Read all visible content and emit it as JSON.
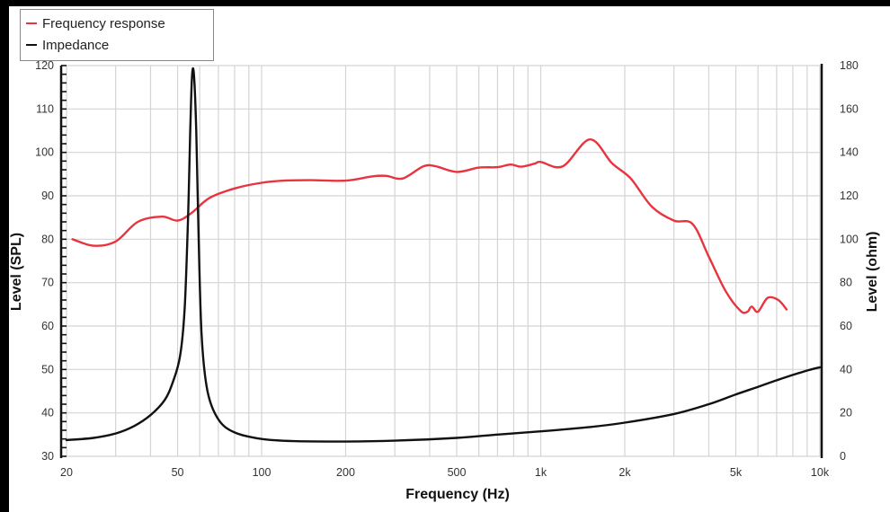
{
  "chart_data": {
    "type": "line",
    "title": "",
    "xlabel": "Frequency (Hz)",
    "ylabel": "Level (SPL)",
    "y2label": "Level (ohm)",
    "xscale": "log",
    "xlim": [
      20,
      10000
    ],
    "ylim": [
      30,
      120
    ],
    "y2lim": [
      0,
      180
    ],
    "x_ticks": [
      {
        "value": 20,
        "label": "20"
      },
      {
        "value": 50,
        "label": "50"
      },
      {
        "value": 100,
        "label": "100"
      },
      {
        "value": 200,
        "label": "200"
      },
      {
        "value": 500,
        "label": "500"
      },
      {
        "value": 1000,
        "label": "1k"
      },
      {
        "value": 2000,
        "label": "2k"
      },
      {
        "value": 5000,
        "label": "5k"
      },
      {
        "value": 10000,
        "label": "10k"
      }
    ],
    "y_ticks": [
      "30",
      "40",
      "50",
      "60",
      "70",
      "80",
      "90",
      "100",
      "110",
      "120"
    ],
    "y2_ticks": [
      "0",
      "20",
      "40",
      "60",
      "80",
      "100",
      "120",
      "140",
      "160",
      "180"
    ],
    "grid": true,
    "legend_position": "top-left",
    "series": [
      {
        "name": "Frequency response",
        "color": "#e8343f",
        "axis": "left",
        "x": [
          21,
          25,
          30,
          36,
          44,
          50,
          56,
          65,
          80,
          100,
          120,
          150,
          200,
          250,
          280,
          320,
          380,
          420,
          500,
          600,
          700,
          780,
          850,
          950,
          1000,
          1200,
          1500,
          1800,
          2100,
          2500,
          3000,
          3500,
          4000,
          4600,
          5200,
          5500,
          5700,
          6000,
          6500,
          7100,
          7600
        ],
        "values": [
          80,
          78.5,
          79.5,
          84,
          85.2,
          84.3,
          86,
          89.5,
          91.7,
          93,
          93.5,
          93.6,
          93.5,
          94.5,
          94.6,
          94,
          96.8,
          96.8,
          95.5,
          96.5,
          96.6,
          97.2,
          96.7,
          97.4,
          97.8,
          96.8,
          103,
          97.5,
          94,
          87.5,
          84.3,
          83.5,
          76,
          68,
          63.5,
          63.3,
          64.5,
          63.3,
          66.5,
          66,
          63.8
        ]
      },
      {
        "name": "Impedance",
        "color": "#111111",
        "axis": "right",
        "x": [
          20,
          25,
          30,
          35,
          40,
          45,
          48,
          51,
          53,
          54.5,
          55.5,
          56.3,
          57.2,
          58.3,
          59.5,
          61,
          64,
          70,
          80,
          100,
          130,
          200,
          300,
          500,
          700,
          1000,
          1500,
          2000,
          3000,
          4000,
          5000,
          6000,
          7000,
          8000,
          9000,
          10000
        ],
        "values": [
          7.5,
          8.5,
          10.5,
          14,
          19,
          26,
          34,
          46,
          68,
          110,
          150,
          175,
          176,
          150,
          100,
          55,
          30,
          17,
          11,
          8,
          7,
          6.8,
          7.2,
          8.5,
          10,
          11.5,
          13.5,
          15.5,
          19.5,
          24,
          28.5,
          32,
          35,
          37.5,
          39.5,
          41
        ]
      }
    ]
  },
  "legend": {
    "items": [
      {
        "label": "Frequency response",
        "color": "#e8343f"
      },
      {
        "label": "Impedance",
        "color": "#111111"
      }
    ]
  },
  "axes": {
    "xlabel": "Frequency (Hz)",
    "ylabel_left": "Level (SPL)",
    "ylabel_right": "Level (ohm)"
  }
}
